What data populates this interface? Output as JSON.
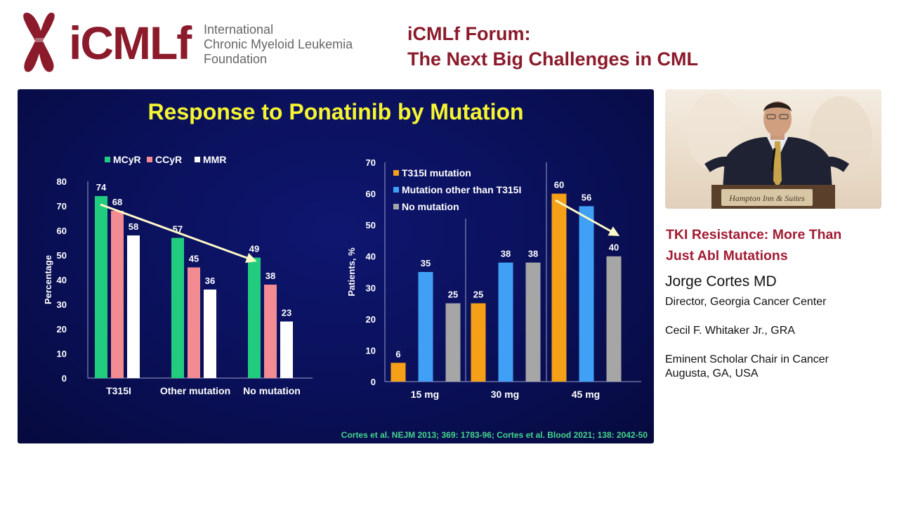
{
  "header": {
    "logo_word": "iCMLf",
    "logo_sub": [
      "International",
      "Chronic Myeloid Leukemia",
      "Foundation"
    ],
    "forum_title": [
      "iCMLf Forum:",
      "The Next Big Challenges in CML"
    ]
  },
  "slide": {
    "title": "Response to Ponatinib by Mutation",
    "citation": "Cortes et al. NEJM 2013; 369: 1783-96; Cortes et al. Blood 2021; 138: 2042-50"
  },
  "chart_data": [
    {
      "type": "bar",
      "ylabel": "Percentage",
      "xlabel": "",
      "ylim": [
        0,
        80
      ],
      "yticks": [
        0,
        10,
        20,
        30,
        40,
        50,
        60,
        70,
        80
      ],
      "categories": [
        "T315I",
        "Other mutation",
        "No mutation"
      ],
      "series": [
        {
          "name": "MCyR",
          "color": "#22cc7f",
          "values": [
            74,
            57,
            49
          ]
        },
        {
          "name": "CCyR",
          "color": "#f28b92",
          "values": [
            68,
            45,
            38
          ]
        },
        {
          "name": "MMR",
          "color": "#ffffff",
          "values": [
            58,
            36,
            23
          ]
        }
      ],
      "legend": "top",
      "grid": false,
      "annotation": "downward trend arrow"
    },
    {
      "type": "bar",
      "ylabel": "Patients, %",
      "xlabel": "",
      "ylim": [
        0,
        70
      ],
      "yticks": [
        0,
        10,
        20,
        30,
        40,
        50,
        60,
        70
      ],
      "categories": [
        "15 mg",
        "30 mg",
        "45 mg"
      ],
      "series": [
        {
          "name": "T315I mutation",
          "color": "#f5a016",
          "values": [
            6,
            25,
            60
          ]
        },
        {
          "name": "Mutation other than T315I",
          "color": "#3fa0f5",
          "values": [
            35,
            38,
            56
          ]
        },
        {
          "name": "No mutation",
          "color": "#a6a6a6",
          "values": [
            25,
            38,
            40
          ]
        }
      ],
      "legend": "top-left",
      "grid": false,
      "annotation": "downward trend arrow"
    }
  ],
  "photo": {
    "sign_text": "Hampton Inn & Suites"
  },
  "speaker": {
    "talk_title": [
      "TKI Resistance: More Than",
      "Just Abl Mutations"
    ],
    "name": "Jorge Cortes MD",
    "aff1": "Director, Georgia Cancer Center",
    "aff2": "Cecil F. Whitaker Jr., GRA",
    "aff3a": "Eminent Scholar Chair in Cancer",
    "aff3b": "Augusta, GA, USA"
  },
  "colors": {
    "brand": "#8b1a2b",
    "slide_bg": "#0a1058",
    "slide_title": "#f5f531",
    "citation": "#45d68b"
  }
}
